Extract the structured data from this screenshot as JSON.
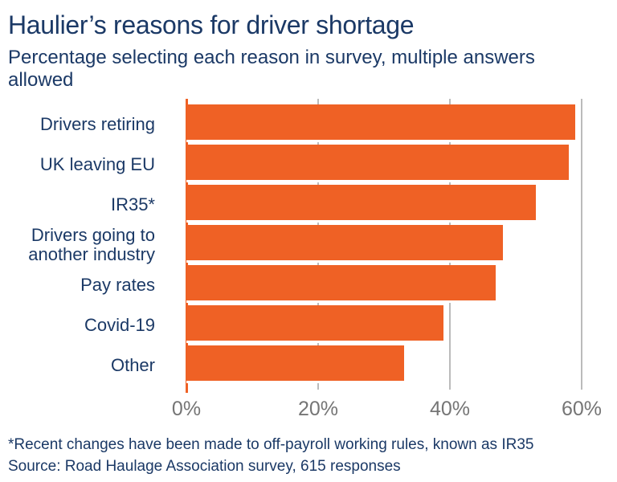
{
  "chart_data": {
    "type": "bar",
    "orientation": "horizontal",
    "title": "Haulier’s reasons for driver shortage",
    "subtitle": "Percentage selecting each reason in survey, multiple answers allowed",
    "categories": [
      "Drivers retiring",
      "UK leaving EU",
      "IR35*",
      "Drivers going to another industry",
      "Pay rates",
      "Covid-19",
      "Other"
    ],
    "values": [
      59,
      58,
      53,
      48,
      47,
      39,
      33
    ],
    "unit": "%",
    "xlim": [
      0,
      60
    ],
    "x_ticks": [
      {
        "label": "0%",
        "value": 0
      },
      {
        "label": "20%",
        "value": 20
      },
      {
        "label": "40%",
        "value": 40
      },
      {
        "label": "60%",
        "value": 60
      }
    ],
    "grid": true,
    "legend": false,
    "footnote": "*Recent changes have been made to off-payroll working rules, known as IR35",
    "source": "Source: Road Haulage Association survey, 615 responses"
  },
  "colors": {
    "bar_orange": "#EF6125",
    "text_navy": "#1B3966",
    "gridline_gray": "#BBBBBB",
    "axis_label_gray": "#757575",
    "background": "#FFFFFF"
  }
}
